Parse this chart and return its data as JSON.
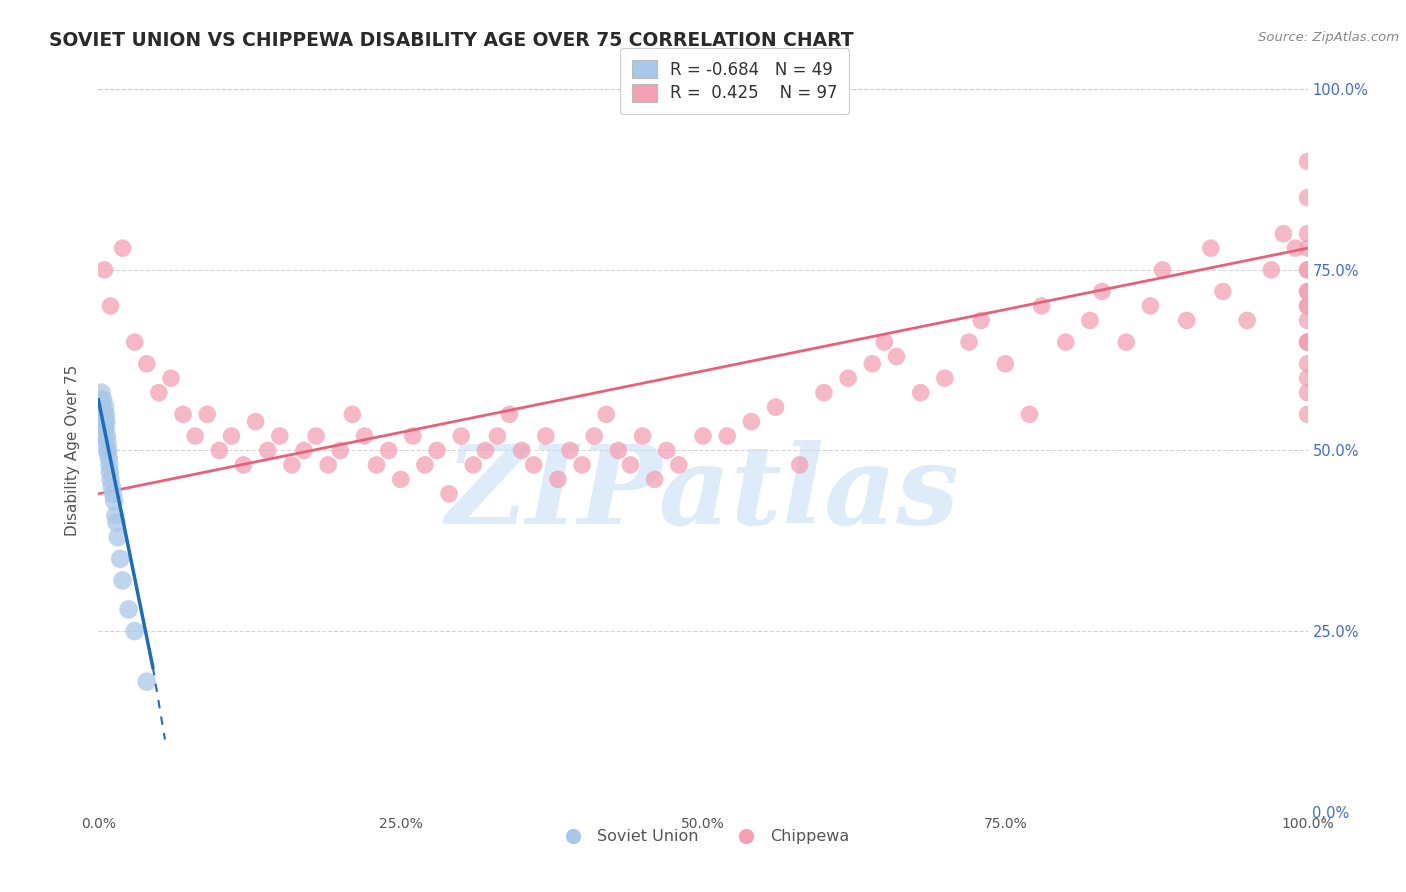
{
  "title": "SOVIET UNION VS CHIPPEWA DISABILITY AGE OVER 75 CORRELATION CHART",
  "source_text": "Source: ZipAtlas.com",
  "ylabel": "Disability Age Over 75",
  "legend_labels": [
    "Soviet Union",
    "Chippewa"
  ],
  "legend_r_values": [
    "-0.684",
    "0.425"
  ],
  "legend_n_values": [
    "49",
    "97"
  ],
  "blue_dot_color": "#a8c8e8",
  "blue_line_color": "#1a6ebd",
  "pink_dot_color": "#f4a0b5",
  "pink_line_color": "#e8607a",
  "watermark": "ZIPatlas",
  "watermark_color": "#c8dff5",
  "background_color": "#ffffff",
  "grid_color": "#cccccc",
  "xlim": [
    0,
    100
  ],
  "ylim": [
    0,
    100
  ],
  "right_tick_labels": [
    "0.0%",
    "25.0%",
    "50.0%",
    "75.0%",
    "100.0%"
  ],
  "right_tick_values": [
    0,
    25,
    50,
    75,
    100
  ],
  "bottom_tick_labels": [
    "0.0%",
    "25.0%",
    "50.0%",
    "75.0%",
    "100.0%"
  ],
  "bottom_tick_values": [
    0,
    25,
    50,
    75,
    100
  ],
  "soviet_x": [
    0.1,
    0.1,
    0.1,
    0.1,
    0.15,
    0.15,
    0.15,
    0.2,
    0.2,
    0.2,
    0.2,
    0.25,
    0.25,
    0.3,
    0.3,
    0.3,
    0.35,
    0.35,
    0.4,
    0.4,
    0.4,
    0.45,
    0.45,
    0.5,
    0.5,
    0.55,
    0.55,
    0.6,
    0.6,
    0.65,
    0.7,
    0.7,
    0.75,
    0.8,
    0.85,
    0.9,
    0.95,
    1.0,
    1.1,
    1.2,
    1.3,
    1.4,
    1.5,
    1.6,
    1.8,
    2.0,
    2.5,
    3.0,
    4.0
  ],
  "soviet_y": [
    55,
    54,
    53,
    52,
    56,
    55,
    54,
    57,
    56,
    55,
    54,
    58,
    53,
    56,
    54,
    52,
    55,
    53,
    57,
    55,
    53,
    54,
    52,
    55,
    53,
    56,
    54,
    55,
    53,
    54,
    52,
    50,
    51,
    50,
    49,
    48,
    47,
    46,
    45,
    44,
    43,
    41,
    40,
    38,
    35,
    32,
    28,
    25,
    18
  ],
  "chippewa_x": [
    0.5,
    1,
    2,
    3,
    4,
    5,
    6,
    7,
    8,
    9,
    10,
    11,
    12,
    13,
    14,
    15,
    16,
    17,
    18,
    19,
    20,
    21,
    22,
    23,
    24,
    25,
    26,
    27,
    28,
    29,
    30,
    31,
    32,
    33,
    34,
    35,
    36,
    37,
    38,
    39,
    40,
    41,
    42,
    43,
    44,
    45,
    46,
    47,
    48,
    50,
    52,
    54,
    56,
    58,
    60,
    62,
    64,
    65,
    66,
    68,
    70,
    72,
    73,
    75,
    77,
    78,
    80,
    82,
    83,
    85,
    87,
    88,
    90,
    92,
    93,
    95,
    97,
    98,
    99,
    100,
    100,
    100,
    100,
    100,
    100,
    100,
    100,
    100,
    100,
    100,
    100,
    100,
    100,
    100,
    100,
    100,
    100
  ],
  "chippewa_y": [
    75,
    70,
    78,
    65,
    62,
    58,
    60,
    55,
    52,
    55,
    50,
    52,
    48,
    54,
    50,
    52,
    48,
    50,
    52,
    48,
    50,
    55,
    52,
    48,
    50,
    46,
    52,
    48,
    50,
    44,
    52,
    48,
    50,
    52,
    55,
    50,
    48,
    52,
    46,
    50,
    48,
    52,
    55,
    50,
    48,
    52,
    46,
    50,
    48,
    52,
    52,
    54,
    56,
    48,
    58,
    60,
    62,
    65,
    63,
    58,
    60,
    65,
    68,
    62,
    55,
    70,
    65,
    68,
    72,
    65,
    70,
    75,
    68,
    78,
    72,
    68,
    75,
    80,
    78,
    72,
    55,
    62,
    65,
    68,
    70,
    72,
    58,
    60,
    65,
    75,
    78,
    80,
    85,
    90,
    65,
    70,
    75
  ],
  "soviet_line_x0": 0,
  "soviet_line_y0": 57,
  "soviet_line_x1": 4.5,
  "soviet_line_y1": 20,
  "soviet_dash_x0": 4.5,
  "soviet_dash_y0": 20,
  "soviet_dash_x1": 5.5,
  "soviet_dash_y1": 10,
  "chippewa_line_x0": 0,
  "chippewa_line_y0": 44,
  "chippewa_line_x1": 100,
  "chippewa_line_y1": 78
}
